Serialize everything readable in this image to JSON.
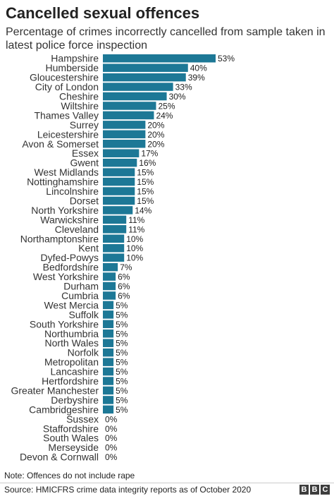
{
  "chart_data": {
    "type": "bar",
    "orientation": "horizontal",
    "title": "Cancelled sexual offences",
    "subtitle": "Percentage of crimes incorrectly cancelled from sample taken in latest police force inspection",
    "categories": [
      "Hampshire",
      "Humberside",
      "Gloucestershire",
      "City of London",
      "Cheshire",
      "Wiltshire",
      "Thames Valley",
      "Surrey",
      "Leicestershire",
      "Avon & Somerset",
      "Essex",
      "Gwent",
      "West Midlands",
      "Nottinghamshire",
      "Lincolnshire",
      "Dorset",
      "North Yorkshire",
      "Warwickshire",
      "Cleveland",
      "Northamptonshire",
      "Kent",
      "Dyfed-Powys",
      "Bedfordshire",
      "West Yorkshire",
      "Durham",
      "Cumbria",
      "West Mercia",
      "Suffolk",
      "South Yorkshire",
      "Northumbria",
      "North Wales",
      "Norfolk",
      "Metropolitan",
      "Lancashire",
      "Hertfordshire",
      "Greater Manchester",
      "Derbyshire",
      "Cambridgeshire",
      "Sussex",
      "Staffordshire",
      "South Wales",
      "Merseyside",
      "Devon & Cornwall"
    ],
    "values": [
      53,
      40,
      39,
      33,
      30,
      25,
      24,
      20,
      20,
      20,
      17,
      16,
      15,
      15,
      15,
      15,
      14,
      11,
      11,
      10,
      10,
      10,
      7,
      6,
      6,
      6,
      5,
      5,
      5,
      5,
      5,
      5,
      5,
      5,
      5,
      5,
      5,
      5,
      0,
      0,
      0,
      0,
      0
    ],
    "value_labels": [
      "53%",
      "40%",
      "39%",
      "33%",
      "30%",
      "25%",
      "24%",
      "20%",
      "20%",
      "20%",
      "17%",
      "16%",
      "15%",
      "15%",
      "15%",
      "15%",
      "14%",
      "11%",
      "11%",
      "10%",
      "10%",
      "10%",
      "7%",
      "6%",
      "6%",
      "6%",
      "5%",
      "5%",
      "5%",
      "5%",
      "5%",
      "5%",
      "5%",
      "5%",
      "5%",
      "5%",
      "5%",
      "5%",
      "0%",
      "0%",
      "0%",
      "0%",
      "0%"
    ],
    "xlim": [
      0,
      53
    ],
    "grid": false,
    "bar_color": "#1d7896"
  },
  "footer": {
    "note": "Note: Offences do not include rape",
    "source": "Source: HMICFRS crime data integrity reports as of October 2020",
    "logo_letters": [
      "B",
      "B",
      "C"
    ]
  }
}
